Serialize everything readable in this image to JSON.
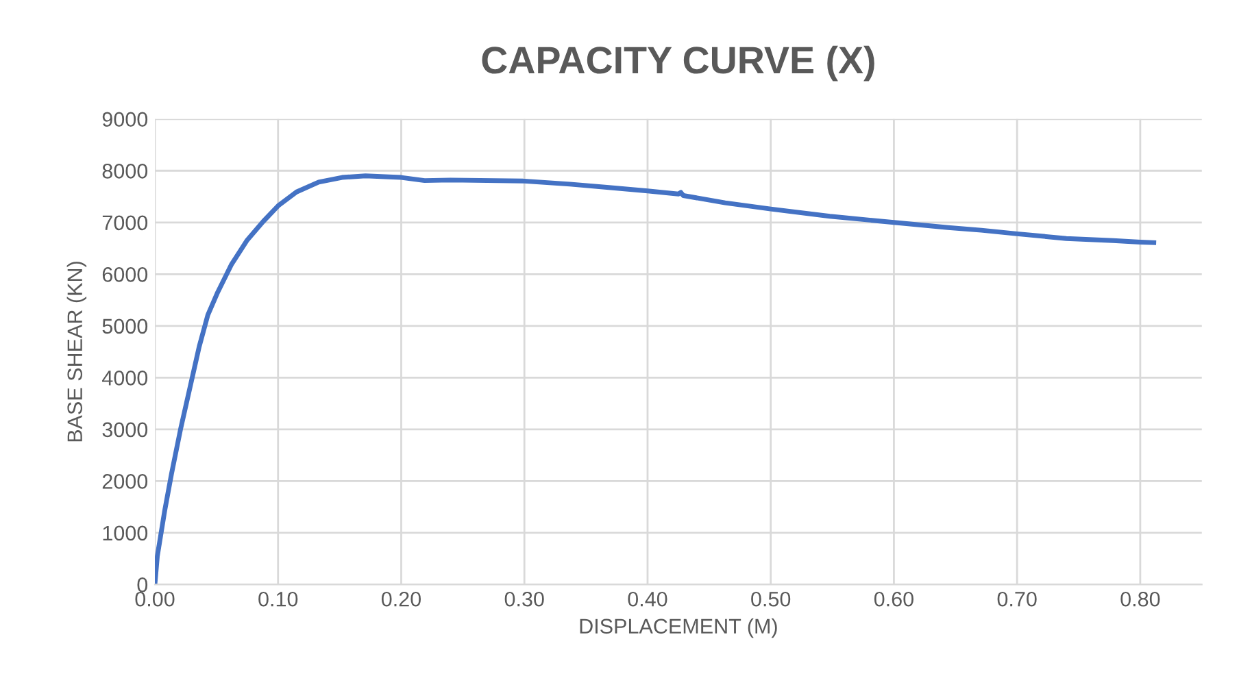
{
  "chart_data": {
    "type": "line",
    "title": "CAPACITY CURVE (X)",
    "xlabel": "DISPLACEMENT (M)",
    "ylabel": "BASE SHEAR (KN)",
    "series": [
      {
        "color": "#4472c4",
        "x": [
          0,
          0.002,
          0.008,
          0.0135,
          0.021,
          0.0285,
          0.036,
          0.043,
          0.051,
          0.062,
          0.075,
          0.088,
          0.1,
          0.115,
          0.133,
          0.152,
          0.171,
          0.19,
          0.2,
          0.219,
          0.24,
          0.3,
          0.337,
          0.367,
          0.4,
          0.425,
          0.427,
          0.429,
          0.463,
          0.5,
          0.548,
          0.6,
          0.644,
          0.671,
          0.7,
          0.74,
          0.778,
          0.8,
          0.811
        ],
        "values": [
          0,
          550,
          1430,
          2140,
          3020,
          3810,
          4600,
          5210,
          5650,
          6180,
          6660,
          7020,
          7320,
          7590,
          7780,
          7870,
          7900,
          7880,
          7870,
          7810,
          7820,
          7800,
          7740,
          7680,
          7610,
          7550,
          7580,
          7520,
          7380,
          7260,
          7120,
          7000,
          6900,
          6850,
          6780,
          6690,
          6650,
          6620,
          6610
        ]
      }
    ],
    "xlim": [
      0,
      0.85
    ],
    "xticks": [
      {
        "value": 0,
        "label": "0.00"
      },
      {
        "value": 0.1,
        "label": "0.10"
      },
      {
        "value": 0.2,
        "label": "0.20"
      },
      {
        "value": 0.3,
        "label": "0.30"
      },
      {
        "value": 0.4,
        "label": "0.40"
      },
      {
        "value": 0.5,
        "label": "0.50"
      },
      {
        "value": 0.6,
        "label": "0.60"
      },
      {
        "value": 0.7,
        "label": "0.70"
      },
      {
        "value": 0.8,
        "label": "0.80"
      }
    ],
    "ylim": [
      0,
      9000
    ],
    "yticks": [
      0,
      1000,
      2000,
      3000,
      4000,
      5000,
      6000,
      7000,
      8000,
      9000
    ],
    "grid": true,
    "marker": "none",
    "line_style": "solid"
  }
}
